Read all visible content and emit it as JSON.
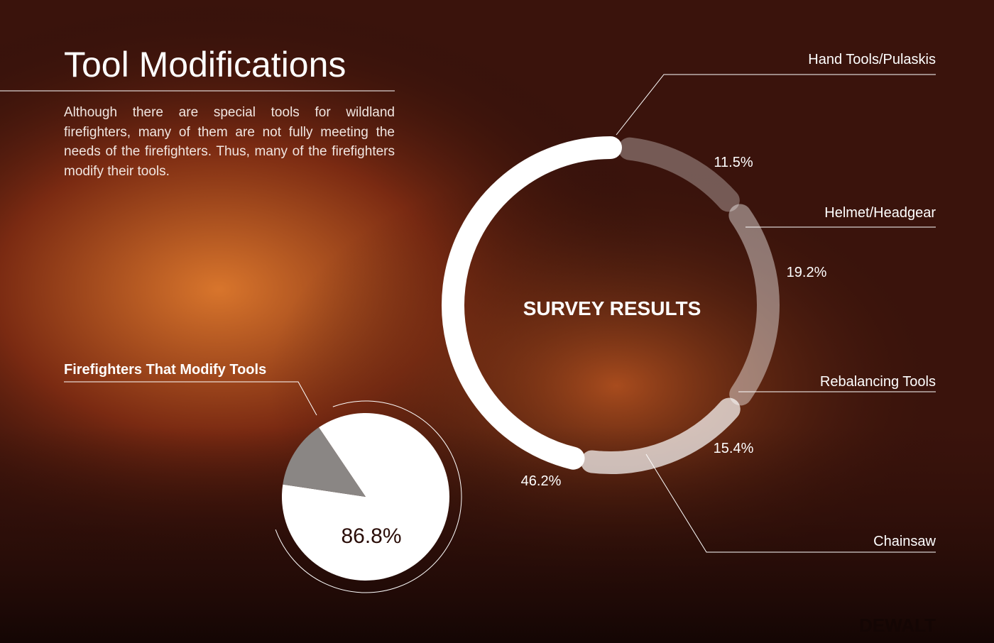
{
  "header": {
    "title": "Tool Modifications",
    "body": "Although there are special tools for wildland firefighters, many of them are not fully meeting the needs of the firefighters. Thus, many of the firefighters modify their tools.",
    "brand": "DEWALT"
  },
  "chart_data": [
    {
      "type": "pie",
      "title": "Firefighters That Modify Tools",
      "values": [
        86.8,
        13.2
      ],
      "value_labels": [
        "86.8%",
        null
      ],
      "colors": [
        "#ffffff",
        "#8a8684"
      ]
    },
    {
      "type": "radial",
      "title": "SURVEY RESULTS",
      "categories": [
        "Hand Tools/Pulaskis",
        "Helmet/Headgear",
        "Rebalancing Tools",
        "Chainsaw"
      ],
      "values": [
        46.2,
        11.5,
        19.2,
        15.4
      ],
      "value_labels": [
        "46.2%",
        "11.5%",
        "19.2%",
        "15.4%"
      ],
      "colors": [
        "#ffffff",
        "rgba(255,255,255,0.3)",
        "rgba(255,255,255,0.42)",
        "rgba(255,255,255,0.7)"
      ]
    }
  ]
}
